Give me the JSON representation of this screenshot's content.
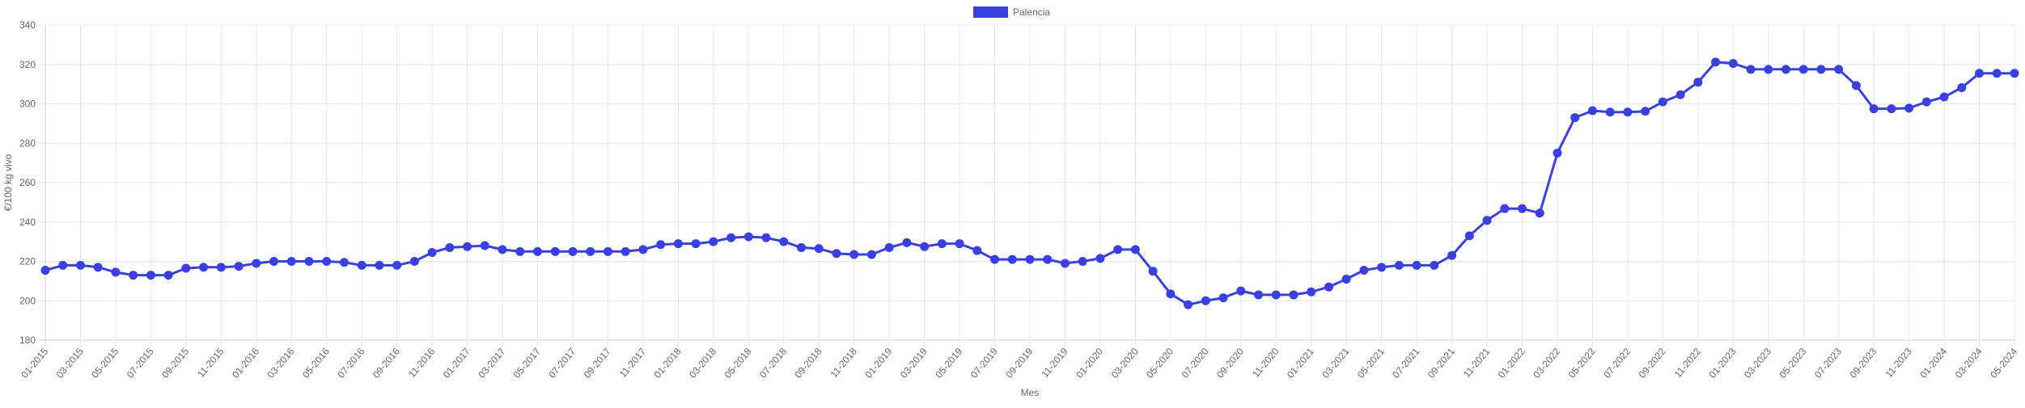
{
  "chart_data": {
    "type": "line",
    "title": "",
    "xlabel": "Mes",
    "ylabel": "€/100 kg vivo",
    "ylim": [
      180,
      340
    ],
    "yticks": [
      180,
      200,
      220,
      240,
      260,
      280,
      300,
      320,
      340
    ],
    "grid": true,
    "legend_position": "top-center",
    "series": [
      {
        "name": "Palencia",
        "color": "#3a40e0",
        "values": [
          215.5,
          218,
          218,
          217,
          214.5,
          213,
          213,
          213,
          216.5,
          217,
          217,
          217.5,
          219,
          220,
          220,
          220,
          220,
          219.5,
          218,
          218,
          218,
          220,
          224.5,
          227,
          227.5,
          228,
          226,
          225,
          225,
          225,
          225,
          225,
          225,
          225,
          226,
          228.5,
          229,
          229,
          230,
          232,
          232.5,
          232,
          230,
          227,
          226.5,
          224,
          223.5,
          223.5,
          227,
          229.5,
          227.5,
          229,
          229,
          225.5,
          221,
          221,
          221,
          221,
          219,
          220,
          221.5,
          226,
          226,
          215,
          203.5,
          198,
          200,
          201.5,
          205,
          203,
          203,
          203,
          204.5,
          207,
          211,
          215.5,
          217,
          218,
          218,
          218,
          223,
          233,
          240.8,
          246.8,
          246.8,
          244.5,
          275,
          293,
          296.5,
          295.8,
          295.8,
          296.2,
          301,
          304.6,
          311,
          321.2,
          320.5,
          317.5,
          317.5,
          317.5,
          317.5,
          317.5,
          317.5,
          309.3,
          297.5,
          297.5,
          297.8,
          301,
          303.5,
          308.2,
          315.5,
          315.5,
          315.5
        ]
      }
    ],
    "start_month": 1,
    "start_year": 2015,
    "x_label_every": 2
  }
}
